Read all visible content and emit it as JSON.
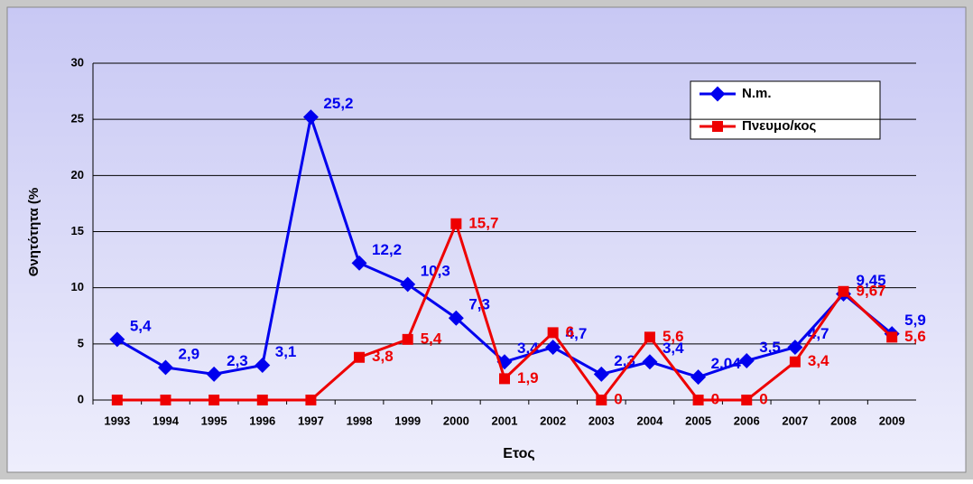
{
  "chart_data": {
    "type": "line",
    "x_label": "Ετος",
    "y_label": "Θνητότητα (%",
    "categories": [
      "1993",
      "1994",
      "1995",
      "1996",
      "1997",
      "1998",
      "1999",
      "2000",
      "2001",
      "2002",
      "2003",
      "2004",
      "2005",
      "2006",
      "2007",
      "2008",
      "2009"
    ],
    "series": [
      {
        "name": "N.m.",
        "color": "#0000ee",
        "values": [
          5.4,
          2.9,
          2.3,
          3.1,
          25.2,
          12.2,
          10.3,
          7.3,
          3.4,
          4.7,
          2.3,
          3.4,
          2.04,
          3.5,
          4.7,
          9.45,
          5.9
        ],
        "value_labels": [
          "5,4",
          "2,9",
          "2,3",
          "3,1",
          "25,2",
          "12,2",
          "10,3",
          "7,3",
          "3,4",
          "4,7",
          "2,3",
          "3,4",
          "2,04",
          "3,5",
          "4,7",
          "9,45",
          "5,9"
        ]
      },
      {
        "name": "Πνευμο/κος",
        "color": "#ee0000",
        "values": [
          0,
          0,
          0,
          0,
          0,
          3.8,
          5.4,
          15.7,
          1.9,
          6,
          0,
          5.6,
          0,
          0,
          3.4,
          9.67,
          5.6
        ],
        "value_labels": [
          null,
          null,
          null,
          null,
          null,
          "3,8",
          "5,4",
          "15,7",
          "1,9",
          "6",
          "0",
          "5,6",
          "0",
          "0",
          "3,4",
          "9,67",
          "5,6"
        ]
      }
    ],
    "ylim": [
      0,
      30
    ],
    "yticks": [
      0,
      5,
      10,
      15,
      20,
      25,
      30
    ],
    "grid": true,
    "legend": "upper right"
  }
}
